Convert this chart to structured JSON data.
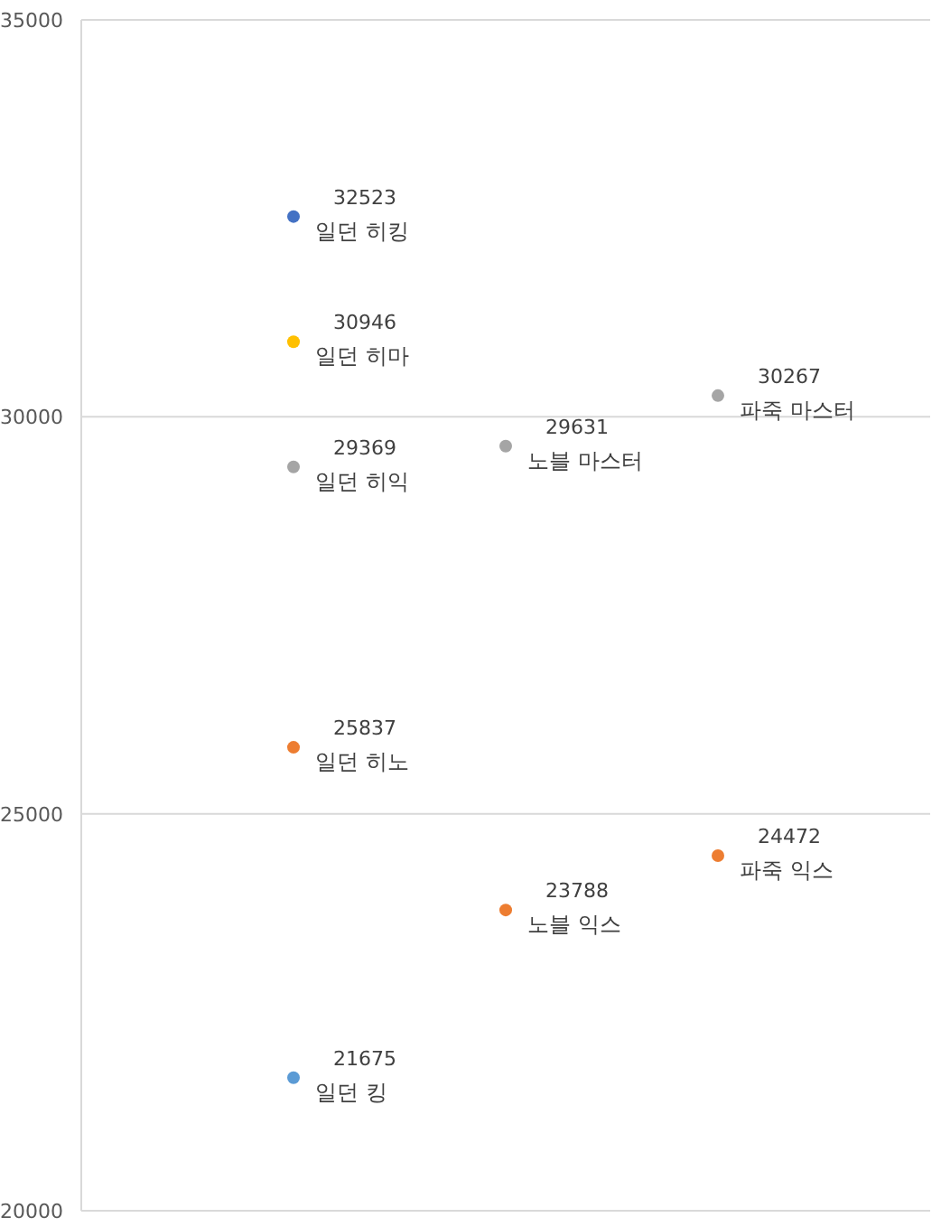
{
  "chart_data": {
    "type": "scatter",
    "categories": [
      null,
      null,
      null
    ],
    "ylim": [
      20000,
      35000
    ],
    "yticks": [
      20000,
      25000,
      30000,
      35000
    ],
    "grid": "y",
    "marker": "circle",
    "data_labels": true,
    "series": [
      {
        "name": "일던 히킹",
        "color": "#4472c4",
        "values": [
          32523,
          null,
          null
        ]
      },
      {
        "name": "일던 히마",
        "color": "#ffc000",
        "values": [
          30946,
          null,
          null
        ]
      },
      {
        "name": "일던 히익",
        "color": "#a5a5a5",
        "values": [
          29369,
          null,
          null
        ]
      },
      {
        "name": "일던 히노",
        "color": "#ed7d31",
        "values": [
          25837,
          null,
          null
        ]
      },
      {
        "name": "일던 킹",
        "color": "#5b9bd5",
        "values": [
          21675,
          null,
          null
        ]
      },
      {
        "name": "노블 마스터",
        "color": "#a5a5a5",
        "values": [
          null,
          29631,
          null
        ]
      },
      {
        "name": "노블 익스",
        "color": "#ed7d31",
        "values": [
          null,
          23788,
          null
        ]
      },
      {
        "name": "파죽 마스터",
        "color": "#a5a5a5",
        "values": [
          null,
          null,
          30267
        ]
      },
      {
        "name": "파죽 익스",
        "color": "#ed7d31",
        "values": [
          null,
          null,
          24472
        ]
      }
    ]
  }
}
